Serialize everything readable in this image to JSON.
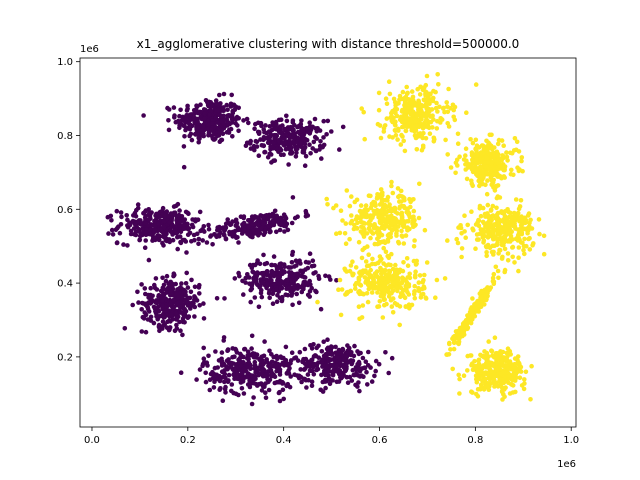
{
  "chart_data": {
    "type": "scatter",
    "title": "x1_agglomerative clustering with distance threshold=500000.0",
    "xlabel": "",
    "ylabel": "",
    "xlim": [
      -25000,
      1010000
    ],
    "ylim": [
      10000,
      1010000
    ],
    "x_ticks": [
      0.0,
      0.2,
      0.4,
      0.6,
      0.8,
      1.0
    ],
    "y_ticks": [
      0.2,
      0.4,
      0.6,
      0.8,
      1.0
    ],
    "x_tick_labels": [
      "0.0",
      "0.2",
      "0.4",
      "0.6",
      "0.8",
      "1.0"
    ],
    "y_tick_labels": [
      "0.2",
      "0.4",
      "0.6",
      "0.8",
      "1.0"
    ],
    "x_offset_label": "1e6",
    "y_offset_label": "1e6",
    "grid": false,
    "legend": "none",
    "colors": {
      "cluster_0": "#440154",
      "cluster_1": "#fde725"
    },
    "clusters": [
      {
        "label": 0,
        "cx": 245000,
        "cy": 840000,
        "sx": 34000,
        "sy": 30000,
        "n": 300
      },
      {
        "label": 0,
        "cx": 410000,
        "cy": 790000,
        "sx": 38000,
        "sy": 25000,
        "n": 260
      },
      {
        "label": 0,
        "cx": 140000,
        "cy": 555000,
        "sx": 42000,
        "sy": 24000,
        "n": 300
      },
      {
        "label": 0,
        "cx": 340000,
        "cy": 555000,
        "sx": 48000,
        "sy": 16000,
        "n": 220
      },
      {
        "label": 0,
        "cx": 165000,
        "cy": 345000,
        "sx": 30000,
        "sy": 32000,
        "n": 300
      },
      {
        "label": 0,
        "cx": 395000,
        "cy": 410000,
        "sx": 40000,
        "sy": 28000,
        "n": 280
      },
      {
        "label": 0,
        "cx": 330000,
        "cy": 165000,
        "sx": 48000,
        "sy": 32000,
        "n": 330
      },
      {
        "label": 0,
        "cx": 510000,
        "cy": 180000,
        "sx": 42000,
        "sy": 28000,
        "n": 260
      },
      {
        "label": 1,
        "cx": 675000,
        "cy": 855000,
        "sx": 35000,
        "sy": 38000,
        "n": 300
      },
      {
        "label": 1,
        "cx": 825000,
        "cy": 725000,
        "sx": 30000,
        "sy": 30000,
        "n": 260
      },
      {
        "label": 1,
        "cx": 610000,
        "cy": 570000,
        "sx": 40000,
        "sy": 35000,
        "n": 300
      },
      {
        "label": 1,
        "cx": 855000,
        "cy": 545000,
        "sx": 34000,
        "sy": 32000,
        "n": 300
      },
      {
        "label": 1,
        "cx": 615000,
        "cy": 400000,
        "sx": 40000,
        "sy": 35000,
        "n": 300
      },
      {
        "label": 1,
        "cx": 795000,
        "cy": 320000,
        "sx": 14000,
        "sy": 48000,
        "n": 180
      },
      {
        "label": 1,
        "cx": 845000,
        "cy": 160000,
        "sx": 30000,
        "sy": 30000,
        "n": 280
      }
    ]
  }
}
